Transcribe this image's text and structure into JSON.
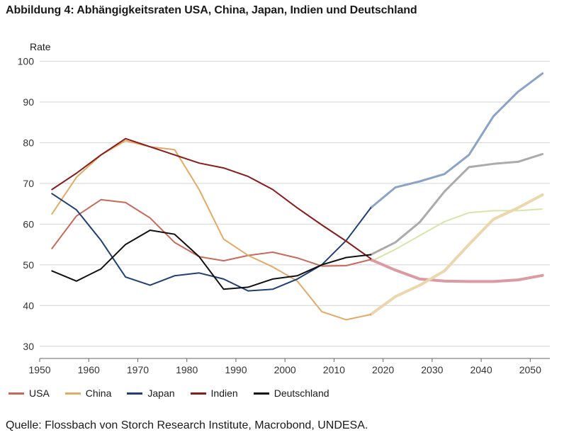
{
  "title": "Abbildung 4: Abhängigkeitsraten USA, China, Japan, Indien und Deutschland",
  "source": "Quelle: Flossbach von Storch Research Institute, Macrobond, UNDESA.",
  "chart_data": {
    "type": "line",
    "title": "Abbildung 4: Abhängigkeitsraten USA, China, Japan, Indien und Deutschland",
    "xlabel": "",
    "ylabel": "Rate",
    "xlim": [
      1950,
      2054
    ],
    "ylim": [
      27,
      102
    ],
    "xticks": [
      1950,
      1960,
      1970,
      1980,
      1990,
      2000,
      2010,
      2020,
      2030,
      2040,
      2050
    ],
    "yticks": [
      30,
      40,
      50,
      60,
      70,
      80,
      90,
      100
    ],
    "grid": "horizontal",
    "legend_position": "bottom",
    "projection_start": 2017.5,
    "series": [
      {
        "name": "USA",
        "color": "#c8695a",
        "projection_color": "#dc9aa2",
        "points": [
          [
            1952.5,
            54.0
          ],
          [
            1957.5,
            62.0
          ],
          [
            1962.5,
            66.0
          ],
          [
            1967.5,
            65.3
          ],
          [
            1972.5,
            61.5
          ],
          [
            1977.5,
            55.5
          ],
          [
            1982.5,
            52.0
          ],
          [
            1987.5,
            51.0
          ],
          [
            1992.5,
            52.3
          ],
          [
            1997.5,
            53.1
          ],
          [
            2002.5,
            51.7
          ],
          [
            2007.5,
            49.7
          ],
          [
            2012.5,
            49.8
          ],
          [
            2017.5,
            51.3
          ],
          [
            2022.5,
            48.7
          ],
          [
            2027.5,
            46.5
          ],
          [
            2032.5,
            46.0
          ],
          [
            2037.5,
            45.9
          ],
          [
            2042.5,
            45.9
          ],
          [
            2047.5,
            46.3
          ],
          [
            2052.5,
            47.4
          ]
        ]
      },
      {
        "name": "China",
        "color": "#e3aa66",
        "projection_color": "#ead7ad",
        "points": [
          [
            1952.5,
            62.5
          ],
          [
            1957.5,
            71.5
          ],
          [
            1962.5,
            77.0
          ],
          [
            1967.5,
            80.5
          ],
          [
            1972.5,
            79.0
          ],
          [
            1977.5,
            78.3
          ],
          [
            1982.5,
            68.5
          ],
          [
            1987.5,
            56.3
          ],
          [
            1992.5,
            52.3
          ],
          [
            1997.5,
            49.5
          ],
          [
            2002.5,
            46.0
          ],
          [
            2007.5,
            38.5
          ],
          [
            2012.5,
            36.5
          ],
          [
            2017.5,
            37.8
          ],
          [
            2022.5,
            42.2
          ],
          [
            2027.5,
            45.0
          ],
          [
            2032.5,
            48.5
          ],
          [
            2037.5,
            55.0
          ],
          [
            2042.5,
            61.2
          ],
          [
            2047.5,
            64.0
          ],
          [
            2052.5,
            67.2
          ]
        ]
      },
      {
        "name": "Japan",
        "color": "#1f3f76",
        "projection_color": "#8ca3c5",
        "points": [
          [
            1952.5,
            67.5
          ],
          [
            1957.5,
            63.5
          ],
          [
            1962.5,
            56.0
          ],
          [
            1967.5,
            47.0
          ],
          [
            1972.5,
            45.0
          ],
          [
            1977.5,
            47.3
          ],
          [
            1982.5,
            48.0
          ],
          [
            1987.5,
            46.5
          ],
          [
            1992.5,
            43.6
          ],
          [
            1997.5,
            44.0
          ],
          [
            2002.5,
            46.5
          ],
          [
            2007.5,
            50.0
          ],
          [
            2012.5,
            56.0
          ],
          [
            2017.5,
            64.0
          ],
          [
            2022.5,
            69.0
          ],
          [
            2027.5,
            70.5
          ],
          [
            2032.5,
            72.3
          ],
          [
            2037.5,
            77.0
          ],
          [
            2042.5,
            86.5
          ],
          [
            2047.5,
            92.5
          ],
          [
            2052.5,
            97.0
          ]
        ]
      },
      {
        "name": "Indien",
        "color": "#8b1a1a",
        "projection_color": null,
        "points": [
          [
            1952.5,
            68.5
          ],
          [
            1957.5,
            72.5
          ],
          [
            1962.5,
            77.0
          ],
          [
            1967.5,
            81.0
          ],
          [
            1972.5,
            79.0
          ],
          [
            1977.5,
            77.0
          ],
          [
            1982.5,
            75.0
          ],
          [
            1987.5,
            73.8
          ],
          [
            1992.5,
            71.7
          ],
          [
            1997.5,
            68.5
          ],
          [
            2002.5,
            64.0
          ],
          [
            2007.5,
            59.8
          ],
          [
            2012.5,
            55.8
          ],
          [
            2017.5,
            51.5
          ]
        ]
      },
      {
        "name": "Deutschland",
        "color": "#111111",
        "projection_color": "#ababab",
        "points": [
          [
            1952.5,
            48.5
          ],
          [
            1957.5,
            46.0
          ],
          [
            1962.5,
            49.0
          ],
          [
            1967.5,
            55.0
          ],
          [
            1972.5,
            58.5
          ],
          [
            1977.5,
            57.5
          ],
          [
            1982.5,
            52.0
          ],
          [
            1987.5,
            44.0
          ],
          [
            1992.5,
            44.5
          ],
          [
            1997.5,
            46.5
          ],
          [
            2002.5,
            47.3
          ],
          [
            2007.5,
            50.0
          ],
          [
            2012.5,
            51.8
          ],
          [
            2017.5,
            52.5
          ],
          [
            2022.5,
            55.5
          ],
          [
            2027.5,
            60.5
          ],
          [
            2032.5,
            68.0
          ],
          [
            2037.5,
            74.0
          ],
          [
            2042.5,
            74.8
          ],
          [
            2047.5,
            75.3
          ],
          [
            2052.5,
            77.2
          ]
        ]
      }
    ],
    "extra_series": [
      {
        "color": "#d6e6a8",
        "points": [
          [
            2017.5,
            50.8
          ],
          [
            2022.5,
            53.8
          ],
          [
            2027.5,
            57.2
          ],
          [
            2032.5,
            60.6
          ],
          [
            2037.5,
            62.8
          ],
          [
            2042.5,
            63.3
          ],
          [
            2047.5,
            63.3
          ],
          [
            2052.5,
            63.7
          ]
        ]
      }
    ]
  }
}
